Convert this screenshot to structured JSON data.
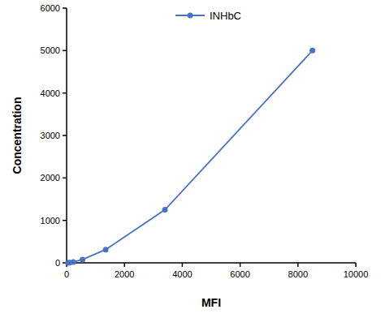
{
  "chart_data": {
    "type": "line",
    "x_label": "MFI",
    "y_label": "Concentration",
    "x": [
      50,
      100,
      230,
      550,
      1350,
      3400,
      8500
    ],
    "series": [
      {
        "name": "INHbC",
        "color": "#4a72c0",
        "marker": "circle",
        "line_style": "solid",
        "values": [
          1.2,
          4.9,
          19.5,
          78.1,
          312.5,
          1250,
          5000
        ]
      }
    ],
    "xlim": [
      0,
      10000
    ],
    "xticks": [
      0,
      2000,
      4000,
      6000,
      8000,
      10000
    ],
    "ylim": [
      0,
      6000
    ],
    "yticks": [
      0,
      1000,
      2000,
      3000,
      4000,
      5000,
      6000
    ],
    "grid": false,
    "legend": "top"
  }
}
